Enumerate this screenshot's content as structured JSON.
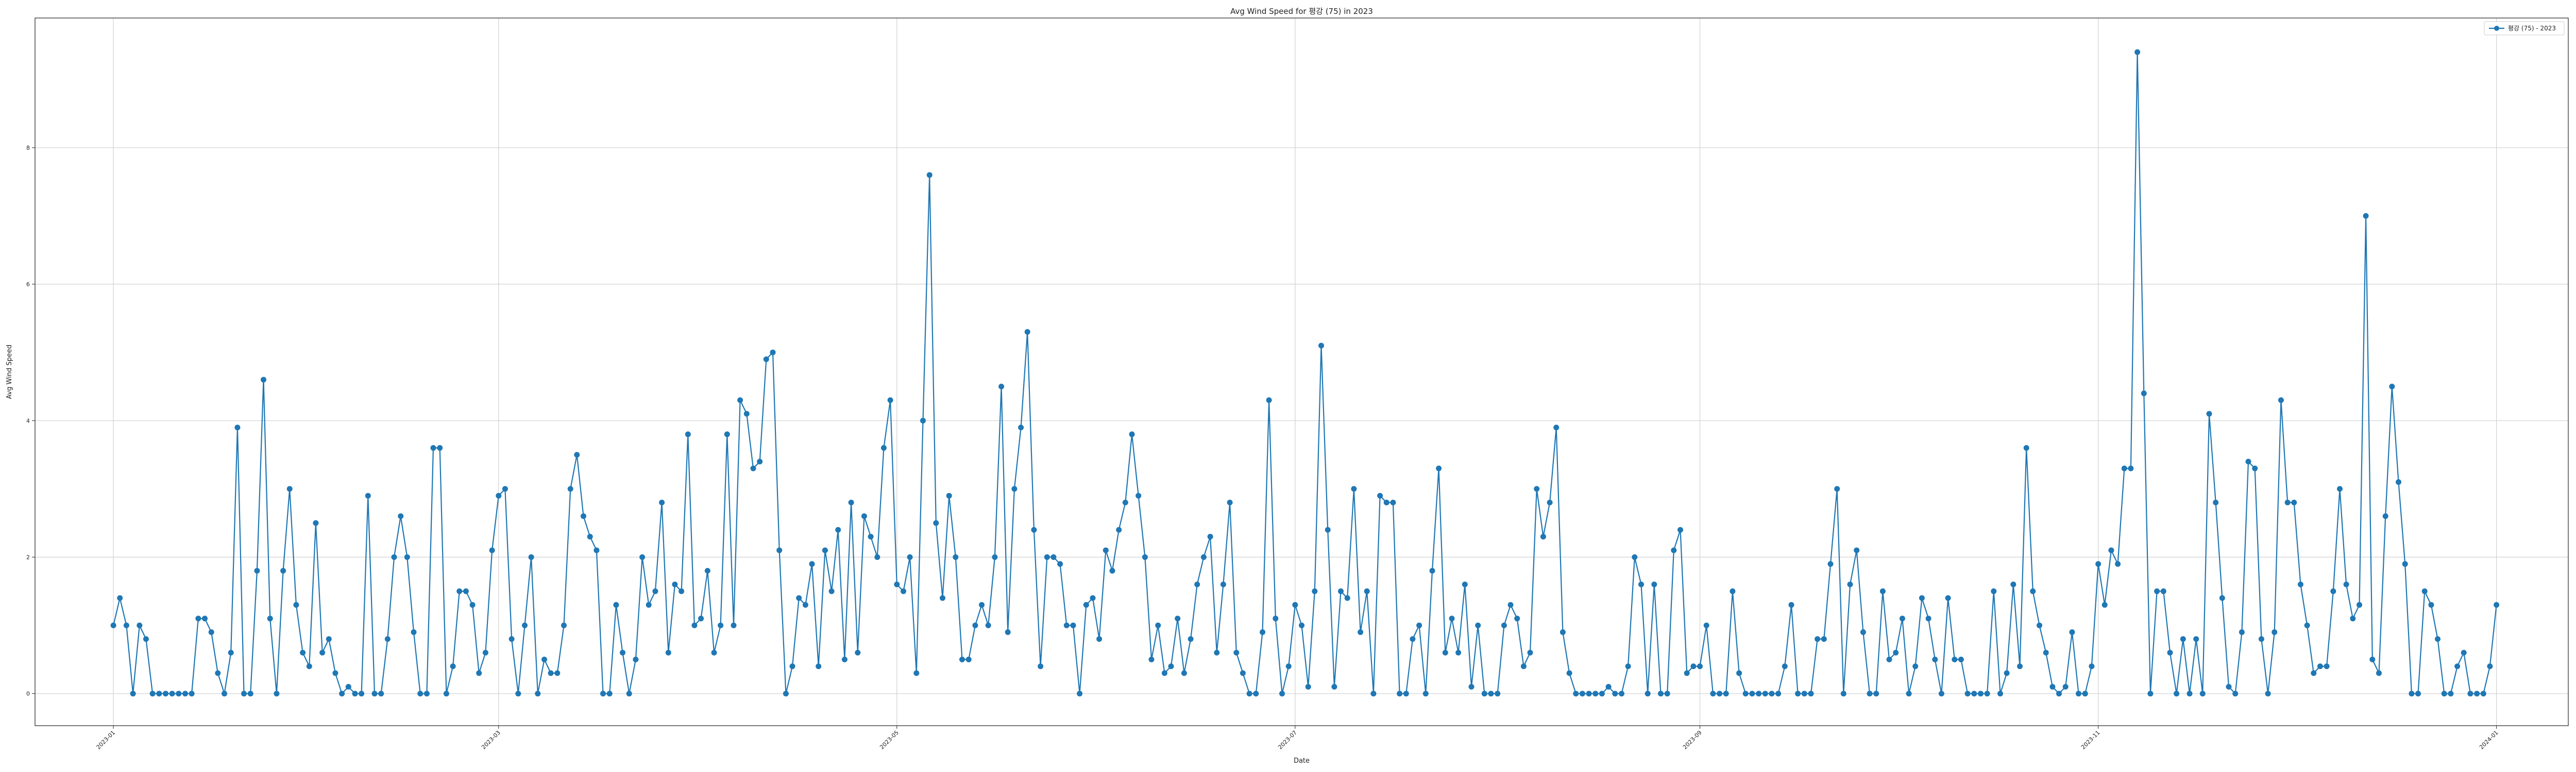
{
  "chart_data": {
    "type": "line",
    "title": "Avg Wind Speed for 평강 (75) in 2023",
    "xlabel": "Date",
    "ylabel": "Avg Wind Speed",
    "legend": {
      "position": "top-right",
      "label": "평강 (75) - 2023"
    },
    "grid": true,
    "color": "#1f77b4",
    "xlim": [
      "2022-12-20",
      "2024-01-12"
    ],
    "ylim": [
      -0.47,
      9.9
    ],
    "x_ticks": [
      "2023-01",
      "2023-03",
      "2023-05",
      "2023-07",
      "2023-09",
      "2023-11",
      "2024-01"
    ],
    "y_ticks": [
      0,
      2,
      4,
      6,
      8
    ],
    "start_date": "2023-01-01",
    "series": [
      {
        "name": "평강 (75) - 2023",
        "values": [
          1.0,
          1.4,
          1.0,
          0.0,
          1.0,
          0.8,
          0.0,
          0.0,
          0.0,
          0.0,
          0.0,
          0.0,
          0.0,
          1.1,
          1.1,
          0.9,
          0.3,
          0.0,
          0.6,
          3.9,
          0.0,
          0.0,
          1.8,
          4.6,
          1.1,
          0.0,
          1.8,
          3.0,
          1.3,
          0.6,
          0.4,
          2.5,
          0.6,
          0.8,
          0.3,
          0.0,
          0.1,
          0.0,
          0.0,
          2.9,
          0.0,
          0.0,
          0.8,
          2.0,
          2.6,
          2.0,
          0.9,
          0.0,
          0.0,
          3.6,
          3.6,
          0.0,
          0.4,
          1.5,
          1.5,
          1.3,
          0.3,
          0.6,
          2.1,
          2.9,
          3.0,
          0.8,
          0.0,
          1.0,
          2.0,
          0.0,
          0.5,
          0.3,
          0.3,
          1.0,
          3.0,
          3.5,
          2.6,
          2.3,
          2.1,
          0.0,
          0.0,
          1.3,
          0.6,
          0.0,
          0.5,
          2.0,
          1.3,
          1.5,
          2.8,
          0.6,
          1.6,
          1.5,
          3.8,
          1.0,
          1.1,
          1.8,
          0.6,
          1.0,
          3.8,
          1.0,
          4.3,
          4.1,
          3.3,
          3.4,
          4.9,
          5.0,
          2.1,
          0.0,
          0.4,
          1.4,
          1.3,
          1.9,
          0.4,
          2.1,
          1.5,
          2.4,
          0.5,
          2.8,
          0.6,
          2.6,
          2.3,
          2.0,
          3.6,
          4.3,
          1.6,
          1.5,
          2.0,
          0.3,
          4.0,
          7.6,
          2.5,
          1.4,
          2.9,
          2.0,
          0.5,
          0.5,
          1.0,
          1.3,
          1.0,
          2.0,
          4.5,
          0.9,
          3.0,
          3.9,
          5.3,
          2.4,
          0.4,
          2.0,
          2.0,
          1.9,
          1.0,
          1.0,
          0.0,
          1.3,
          1.4,
          0.8,
          2.1,
          1.8,
          2.4,
          2.8,
          3.8,
          2.9,
          2.0,
          0.5,
          1.0,
          0.3,
          0.4,
          1.1,
          0.3,
          0.8,
          1.6,
          2.0,
          2.3,
          0.6,
          1.6,
          2.8,
          0.6,
          0.3,
          0.0,
          0.0,
          0.9,
          4.3,
          1.1,
          0.0,
          0.4,
          1.3,
          1.0,
          0.1,
          1.5,
          5.1,
          2.4,
          0.1,
          1.5,
          1.4,
          3.0,
          0.9,
          1.5,
          0.0,
          2.9,
          2.8,
          2.8,
          0.0,
          0.0,
          0.8,
          1.0,
          0.0,
          1.8,
          3.3,
          0.6,
          1.1,
          0.6,
          1.6,
          0.1,
          1.0,
          0.0,
          0.0,
          0.0,
          1.0,
          1.3,
          1.1,
          0.4,
          0.6,
          3.0,
          2.3,
          2.8,
          3.9,
          0.9,
          0.3,
          0.0,
          0.0,
          0.0,
          0.0,
          0.0,
          0.1,
          0.0,
          0.0,
          0.4,
          2.0,
          1.6,
          0.0,
          1.6,
          0.0,
          0.0,
          2.1,
          2.4,
          0.3,
          0.4,
          0.4,
          1.0,
          0.0,
          0.0,
          0.0,
          1.5,
          0.3,
          0.0,
          0.0,
          0.0,
          0.0,
          0.0,
          0.0,
          0.4,
          1.3,
          0.0,
          0.0,
          0.0,
          0.8,
          0.8,
          1.9,
          3.0,
          0.0,
          1.6,
          2.1,
          0.9,
          0.0,
          0.0,
          1.5,
          0.5,
          0.6,
          1.1,
          0.0,
          0.4,
          1.4,
          1.1,
          0.5,
          0.0,
          1.4,
          0.5,
          0.5,
          0.0,
          0.0,
          0.0,
          0.0,
          1.5,
          0.0,
          0.3,
          1.6,
          0.4,
          3.6,
          1.5,
          1.0,
          0.6,
          0.1,
          0.0,
          0.1,
          0.9,
          0.0,
          0.0,
          0.4,
          1.9,
          1.3,
          2.1,
          1.9,
          3.3,
          3.3,
          9.4,
          4.4,
          0.0,
          1.5,
          1.5,
          0.6,
          0.0,
          0.8,
          0.0,
          0.8,
          0.0,
          4.1,
          2.8,
          1.4,
          0.1,
          0.0,
          0.9,
          3.4,
          3.3,
          0.8,
          0.0,
          0.9,
          4.3,
          2.8,
          2.8,
          1.6,
          1.0,
          0.3,
          0.4,
          0.4,
          1.5,
          3.0,
          1.6,
          1.1,
          1.3,
          7.0,
          0.5,
          0.3,
          2.6,
          4.5,
          3.1,
          1.9,
          0.0,
          0.0,
          1.5,
          1.3,
          0.8,
          0.0,
          0.0,
          0.4,
          0.6,
          0.0,
          0.0,
          0.0,
          0.4,
          1.3
        ]
      }
    ]
  }
}
